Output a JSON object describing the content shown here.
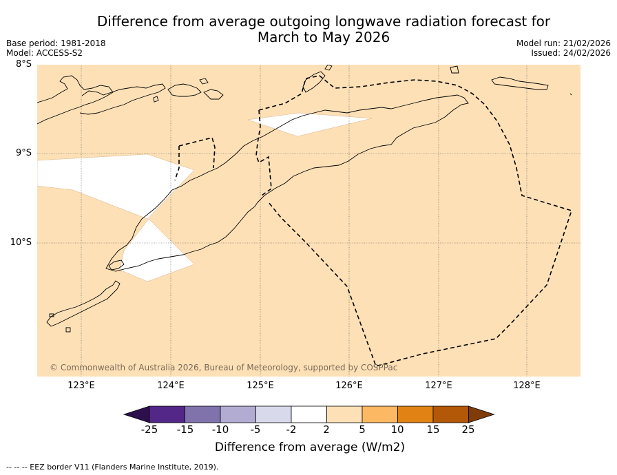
{
  "title_line1": "Difference from average outgoing longwave radiation forecast for",
  "title_line2": "March to May 2026",
  "base_period": "Base period: 1981-2018",
  "model": "Model: ACCESS-S2",
  "model_run": "Model run: 21/02/2026",
  "issued": "Issued: 24/02/2026",
  "lat_labels": [
    "8°S",
    "9°S",
    "10°S"
  ],
  "lon_labels": [
    "123°E",
    "124°E",
    "125°E",
    "126°E",
    "127°E",
    "128°E"
  ],
  "copyright": "© Commonwealth of Australia 2026, Bureau of Meteorology, supported by COSPPac",
  "colorbar": {
    "title": "Difference from average (W/m2)",
    "ticks": [
      "-25",
      "-15",
      "-10",
      "-5",
      "-2",
      "2",
      "5",
      "10",
      "15",
      "25"
    ],
    "colors": [
      "#2d0f4e",
      "#532788",
      "#8073ac",
      "#b2abd2",
      "#d8daeb",
      "#ffffff",
      "#fee0b6",
      "#fdb863",
      "#e08214",
      "#b35806",
      "#7f3b08"
    ]
  },
  "colors": {
    "map_fill": "#fde0b6",
    "neutral_fill": "#ffffff",
    "coast": "#000000",
    "eez": "#000000"
  },
  "footer": "--  --  -- EEZ border V11 (Flanders Marine Institute, 2019)."
}
